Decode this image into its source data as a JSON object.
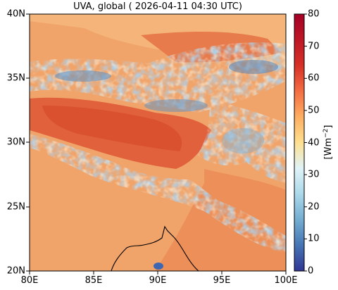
{
  "title": "UVA, global ( 2026-04-11 04:30 UTC)",
  "y_ticks": [
    "20N",
    "25N",
    "30N",
    "35N",
    "40N"
  ],
  "x_ticks": [
    "80E",
    "85E",
    "90E",
    "95E",
    "100E"
  ],
  "colorbar": {
    "ticks": [
      "0",
      "10",
      "20",
      "30",
      "40",
      "50",
      "60",
      "70",
      "80"
    ],
    "label_prefix": "[Wm",
    "label_exp": "−2",
    "label_suffix": "]",
    "colormap": "RdYlBu_r",
    "range": [
      0,
      80
    ]
  },
  "map": {
    "lon_range": [
      80,
      100
    ],
    "lat_range": [
      20,
      40
    ],
    "colors": {
      "background": "#f1a46a",
      "high": "#e05a3a",
      "cloud": "#6f9fcc",
      "coastline": "#000000"
    }
  }
}
